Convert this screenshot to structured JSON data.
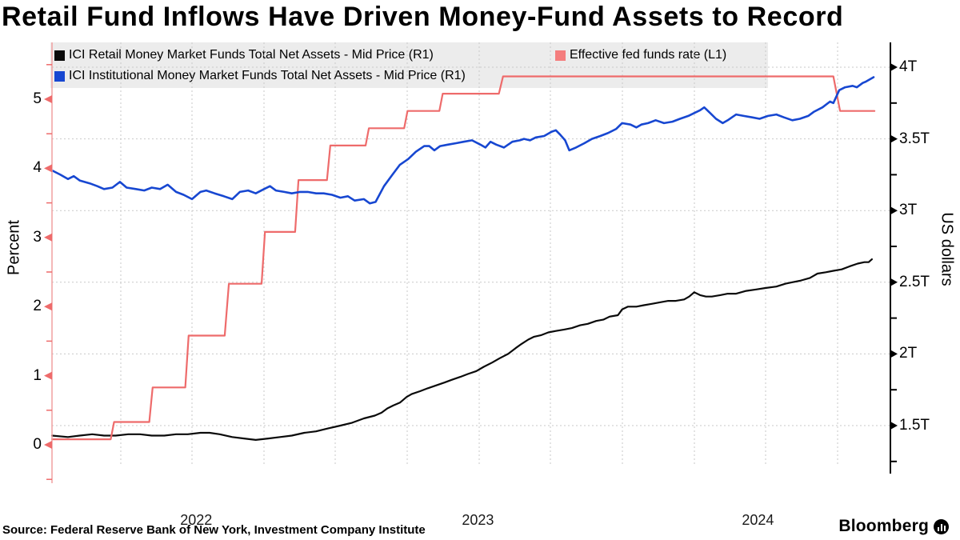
{
  "title": "Retail Fund Inflows Have Driven Money-Fund Assets to Record",
  "source": "Source: Federal Reserve Bank of New York, Investment Company Institute",
  "branding": {
    "logo_text": "Bloomberg"
  },
  "legend": {
    "items": [
      {
        "label": "ICI Retail Money Market Funds Total Net Assets - Mid Price (R1)",
        "color": "#0a0a0a"
      },
      {
        "label": "ICI Institutional Money Market Funds Total Net Assets - Mid Price (R1)",
        "color": "#1747d1"
      },
      {
        "label": "Effective fed funds rate  (L1)",
        "color": "#fris"
      }
    ]
  },
  "chart_data": {
    "type": "line",
    "title": "Retail Fund Inflows Have Driven Money-Fund Assets to Record",
    "x_axis": {
      "labels": [
        "2022",
        "2023",
        "2024"
      ],
      "range_estimate": "Jan 2022 to Nov 2024",
      "grid": "quarterly dashed"
    },
    "left_axis": {
      "label": "Percent",
      "ticks": [
        0,
        1,
        2,
        3,
        4,
        5
      ],
      "ylim": [
        -0.6,
        5.8
      ],
      "side": "L1"
    },
    "right_axis": {
      "label": "US dollars",
      "tick_labels": [
        "1.5T",
        "2T",
        "2.5T",
        "3T",
        "3.5T",
        "4T"
      ],
      "tick_values_trillions": [
        1.5,
        2,
        2.5,
        3,
        3.5,
        4
      ],
      "ylim_trillions": [
        1.17,
        4.17
      ],
      "side": "R1"
    },
    "grid": true,
    "legend_position": "top-left",
    "series": [
      {
        "name": "ICI Retail Money Market Funds Total Net Assets - Mid Price (R1)",
        "axis": "R1",
        "unit": "USD trillions",
        "color": "#0a0a0a",
        "style": "line",
        "points": [
          [
            0.0,
            1.43
          ],
          [
            0.019,
            1.42
          ],
          [
            0.033,
            1.43
          ],
          [
            0.048,
            1.44
          ],
          [
            0.062,
            1.43
          ],
          [
            0.076,
            1.43
          ],
          [
            0.091,
            1.44
          ],
          [
            0.105,
            1.44
          ],
          [
            0.119,
            1.43
          ],
          [
            0.134,
            1.43
          ],
          [
            0.148,
            1.44
          ],
          [
            0.162,
            1.44
          ],
          [
            0.177,
            1.45
          ],
          [
            0.188,
            1.45
          ],
          [
            0.2,
            1.44
          ],
          [
            0.215,
            1.42
          ],
          [
            0.229,
            1.41
          ],
          [
            0.243,
            1.4
          ],
          [
            0.258,
            1.41
          ],
          [
            0.272,
            1.42
          ],
          [
            0.286,
            1.43
          ],
          [
            0.301,
            1.45
          ],
          [
            0.315,
            1.46
          ],
          [
            0.329,
            1.48
          ],
          [
            0.344,
            1.5
          ],
          [
            0.358,
            1.52
          ],
          [
            0.372,
            1.55
          ],
          [
            0.385,
            1.57
          ],
          [
            0.393,
            1.59
          ],
          [
            0.4,
            1.62
          ],
          [
            0.407,
            1.64
          ],
          [
            0.415,
            1.66
          ],
          [
            0.423,
            1.7
          ],
          [
            0.429,
            1.72
          ],
          [
            0.439,
            1.74
          ],
          [
            0.448,
            1.76
          ],
          [
            0.458,
            1.78
          ],
          [
            0.468,
            1.8
          ],
          [
            0.477,
            1.82
          ],
          [
            0.487,
            1.84
          ],
          [
            0.496,
            1.86
          ],
          [
            0.506,
            1.88
          ],
          [
            0.515,
            1.91
          ],
          [
            0.525,
            1.94
          ],
          [
            0.534,
            1.97
          ],
          [
            0.544,
            2.0
          ],
          [
            0.553,
            2.04
          ],
          [
            0.56,
            2.07
          ],
          [
            0.568,
            2.1
          ],
          [
            0.575,
            2.12
          ],
          [
            0.583,
            2.13
          ],
          [
            0.592,
            2.15
          ],
          [
            0.601,
            2.16
          ],
          [
            0.611,
            2.17
          ],
          [
            0.62,
            2.18
          ],
          [
            0.63,
            2.2
          ],
          [
            0.639,
            2.21
          ],
          [
            0.649,
            2.23
          ],
          [
            0.658,
            2.24
          ],
          [
            0.665,
            2.26
          ],
          [
            0.675,
            2.27
          ],
          [
            0.68,
            2.31
          ],
          [
            0.687,
            2.33
          ],
          [
            0.697,
            2.33
          ],
          [
            0.706,
            2.34
          ],
          [
            0.716,
            2.35
          ],
          [
            0.725,
            2.36
          ],
          [
            0.735,
            2.37
          ],
          [
            0.744,
            2.37
          ],
          [
            0.754,
            2.38
          ],
          [
            0.76,
            2.4
          ],
          [
            0.766,
            2.43
          ],
          [
            0.773,
            2.41
          ],
          [
            0.78,
            2.4
          ],
          [
            0.787,
            2.4
          ],
          [
            0.797,
            2.41
          ],
          [
            0.806,
            2.42
          ],
          [
            0.816,
            2.42
          ],
          [
            0.828,
            2.44
          ],
          [
            0.84,
            2.45
          ],
          [
            0.851,
            2.46
          ],
          [
            0.864,
            2.47
          ],
          [
            0.875,
            2.49
          ],
          [
            0.883,
            2.5
          ],
          [
            0.892,
            2.51
          ],
          [
            0.904,
            2.53
          ],
          [
            0.913,
            2.56
          ],
          [
            0.923,
            2.57
          ],
          [
            0.932,
            2.58
          ],
          [
            0.942,
            2.59
          ],
          [
            0.951,
            2.61
          ],
          [
            0.961,
            2.63
          ],
          [
            0.969,
            2.64
          ],
          [
            0.974,
            2.64
          ],
          [
            0.978,
            2.66
          ]
        ]
      },
      {
        "name": "ICI Institutional Money Market Funds Total Net Assets - Mid Price (R1)",
        "axis": "R1",
        "unit": "USD trillions",
        "color": "#1747d1",
        "style": "line",
        "points": [
          [
            0.0,
            3.28
          ],
          [
            0.01,
            3.25
          ],
          [
            0.019,
            3.22
          ],
          [
            0.026,
            3.24
          ],
          [
            0.033,
            3.21
          ],
          [
            0.045,
            3.19
          ],
          [
            0.054,
            3.17
          ],
          [
            0.062,
            3.15
          ],
          [
            0.072,
            3.16
          ],
          [
            0.081,
            3.2
          ],
          [
            0.089,
            3.16
          ],
          [
            0.1,
            3.15
          ],
          [
            0.11,
            3.14
          ],
          [
            0.119,
            3.16
          ],
          [
            0.129,
            3.15
          ],
          [
            0.138,
            3.18
          ],
          [
            0.148,
            3.13
          ],
          [
            0.157,
            3.11
          ],
          [
            0.167,
            3.08
          ],
          [
            0.177,
            3.13
          ],
          [
            0.184,
            3.14
          ],
          [
            0.194,
            3.12
          ],
          [
            0.205,
            3.1
          ],
          [
            0.215,
            3.08
          ],
          [
            0.224,
            3.13
          ],
          [
            0.234,
            3.14
          ],
          [
            0.243,
            3.12
          ],
          [
            0.253,
            3.15
          ],
          [
            0.26,
            3.17
          ],
          [
            0.267,
            3.14
          ],
          [
            0.277,
            3.13
          ],
          [
            0.286,
            3.12
          ],
          [
            0.296,
            3.13
          ],
          [
            0.305,
            3.13
          ],
          [
            0.315,
            3.12
          ],
          [
            0.324,
            3.12
          ],
          [
            0.334,
            3.11
          ],
          [
            0.344,
            3.09
          ],
          [
            0.353,
            3.1
          ],
          [
            0.361,
            3.07
          ],
          [
            0.372,
            3.08
          ],
          [
            0.379,
            3.05
          ],
          [
            0.386,
            3.06
          ],
          [
            0.396,
            3.17
          ],
          [
            0.406,
            3.25
          ],
          [
            0.415,
            3.32
          ],
          [
            0.425,
            3.36
          ],
          [
            0.434,
            3.41
          ],
          [
            0.444,
            3.45
          ],
          [
            0.45,
            3.45
          ],
          [
            0.456,
            3.42
          ],
          [
            0.463,
            3.45
          ],
          [
            0.472,
            3.46
          ],
          [
            0.482,
            3.47
          ],
          [
            0.491,
            3.48
          ],
          [
            0.501,
            3.49
          ],
          [
            0.511,
            3.46
          ],
          [
            0.517,
            3.44
          ],
          [
            0.523,
            3.48
          ],
          [
            0.53,
            3.46
          ],
          [
            0.539,
            3.44
          ],
          [
            0.549,
            3.48
          ],
          [
            0.558,
            3.49
          ],
          [
            0.563,
            3.5
          ],
          [
            0.57,
            3.49
          ],
          [
            0.577,
            3.51
          ],
          [
            0.587,
            3.52
          ],
          [
            0.596,
            3.55
          ],
          [
            0.601,
            3.56
          ],
          [
            0.606,
            3.53
          ],
          [
            0.612,
            3.49
          ],
          [
            0.617,
            3.42
          ],
          [
            0.625,
            3.44
          ],
          [
            0.635,
            3.47
          ],
          [
            0.644,
            3.5
          ],
          [
            0.654,
            3.52
          ],
          [
            0.663,
            3.54
          ],
          [
            0.673,
            3.57
          ],
          [
            0.68,
            3.61
          ],
          [
            0.69,
            3.6
          ],
          [
            0.697,
            3.58
          ],
          [
            0.703,
            3.6
          ],
          [
            0.711,
            3.61
          ],
          [
            0.72,
            3.63
          ],
          [
            0.73,
            3.61
          ],
          [
            0.74,
            3.62
          ],
          [
            0.749,
            3.64
          ],
          [
            0.759,
            3.66
          ],
          [
            0.766,
            3.68
          ],
          [
            0.773,
            3.7
          ],
          [
            0.778,
            3.72
          ],
          [
            0.785,
            3.68
          ],
          [
            0.792,
            3.64
          ],
          [
            0.8,
            3.61
          ],
          [
            0.806,
            3.63
          ],
          [
            0.811,
            3.65
          ],
          [
            0.816,
            3.67
          ],
          [
            0.825,
            3.66
          ],
          [
            0.835,
            3.65
          ],
          [
            0.844,
            3.64
          ],
          [
            0.854,
            3.66
          ],
          [
            0.864,
            3.67
          ],
          [
            0.873,
            3.65
          ],
          [
            0.883,
            3.63
          ],
          [
            0.892,
            3.64
          ],
          [
            0.902,
            3.66
          ],
          [
            0.909,
            3.69
          ],
          [
            0.919,
            3.72
          ],
          [
            0.928,
            3.76
          ],
          [
            0.932,
            3.75
          ],
          [
            0.939,
            3.84
          ],
          [
            0.946,
            3.86
          ],
          [
            0.955,
            3.87
          ],
          [
            0.96,
            3.86
          ],
          [
            0.967,
            3.89
          ],
          [
            0.971,
            3.9
          ],
          [
            0.98,
            3.93
          ]
        ]
      },
      {
        "name": "Effective fed funds rate  (L1)",
        "axis": "L1",
        "unit": "percent",
        "color": "#ee6b6b",
        "style": "step-line",
        "plateau_levels": [
          0.08,
          0.33,
          0.83,
          1.58,
          2.33,
          3.08,
          3.83,
          4.33,
          4.58,
          4.83,
          5.08,
          5.33,
          4.83
        ],
        "points": [
          [
            0.0,
            0.08
          ],
          [
            0.07,
            0.08
          ],
          [
            0.074,
            0.33
          ],
          [
            0.116,
            0.33
          ],
          [
            0.12,
            0.83
          ],
          [
            0.159,
            0.83
          ],
          [
            0.163,
            1.58
          ],
          [
            0.206,
            1.58
          ],
          [
            0.211,
            2.33
          ],
          [
            0.25,
            2.33
          ],
          [
            0.254,
            3.08
          ],
          [
            0.29,
            3.08
          ],
          [
            0.294,
            3.83
          ],
          [
            0.328,
            3.83
          ],
          [
            0.332,
            4.33
          ],
          [
            0.374,
            4.33
          ],
          [
            0.378,
            4.58
          ],
          [
            0.42,
            4.58
          ],
          [
            0.424,
            4.83
          ],
          [
            0.462,
            4.83
          ],
          [
            0.466,
            5.08
          ],
          [
            0.533,
            5.08
          ],
          [
            0.538,
            5.33
          ],
          [
            0.932,
            5.33
          ],
          [
            0.94,
            4.83
          ],
          [
            0.981,
            4.83
          ]
        ]
      }
    ]
  },
  "colors": {
    "retail_line": "#0a0a0a",
    "institutional_line": "#1747d1",
    "fed_funds_line": "#ee6b6b",
    "left_axis_line": "#f0a0a0",
    "grid": "#c9c9c9",
    "legend_background": "#ececec"
  }
}
